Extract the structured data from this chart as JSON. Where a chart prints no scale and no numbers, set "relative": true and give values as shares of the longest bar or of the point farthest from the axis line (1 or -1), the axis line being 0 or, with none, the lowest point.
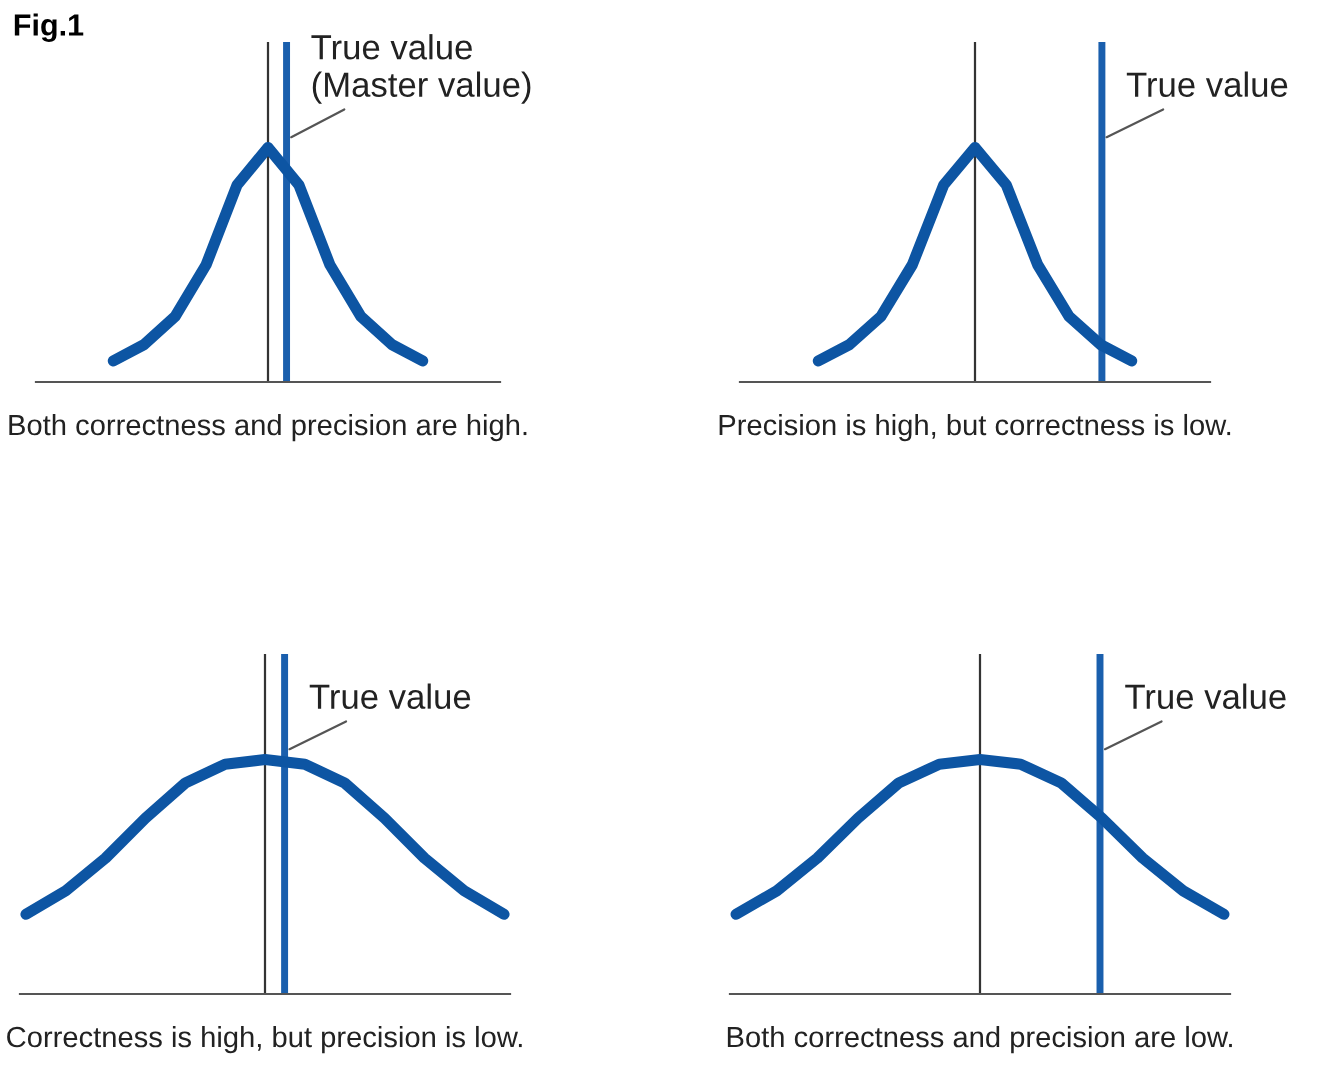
{
  "chart_data": [
    {
      "type": "line",
      "title": "Fig.1",
      "xlabel": "Both correctness and precision are high.",
      "relative": true,
      "categories": [
        null,
        null,
        null,
        null,
        null,
        null,
        null,
        null,
        null,
        null,
        null
      ],
      "series": [
        {
          "color": "#0d55a3",
          "values": [
            0.09,
            0.16,
            0.28,
            0.5,
            0.84,
            1.0,
            0.84,
            0.5,
            0.28,
            0.16,
            0.09
          ]
        }
      ],
      "annotations": [
        "True value\n(Master value)"
      ]
    },
    {
      "type": "line",
      "xlabel": "Precision is high, but correctness is low.",
      "relative": true,
      "categories": [
        null,
        null,
        null,
        null,
        null,
        null,
        null,
        null,
        null,
        null,
        null
      ],
      "series": [
        {
          "color": "#0d55a3",
          "values": [
            0.09,
            0.16,
            0.28,
            0.5,
            0.84,
            1.0,
            0.84,
            0.5,
            0.28,
            0.16,
            0.09
          ]
        }
      ],
      "annotations": [
        "True value"
      ]
    },
    {
      "type": "line",
      "xlabel": "Correctness is high, but precision is low.",
      "relative": true,
      "categories": [
        null,
        null,
        null,
        null,
        null,
        null,
        null,
        null,
        null,
        null,
        null,
        null,
        null
      ],
      "series": [
        {
          "color": "#0d55a3",
          "values": [
            0.34,
            0.44,
            0.58,
            0.75,
            0.9,
            0.98,
            1.0,
            0.98,
            0.9,
            0.75,
            0.58,
            0.44,
            0.34
          ]
        }
      ],
      "annotations": [
        "True value"
      ]
    },
    {
      "type": "line",
      "xlabel": "Both correctness and precision are low.",
      "relative": true,
      "categories": [
        null,
        null,
        null,
        null,
        null,
        null,
        null,
        null,
        null,
        null,
        null,
        null,
        null
      ],
      "series": [
        {
          "color": "#0d55a3",
          "values": [
            0.34,
            0.44,
            0.58,
            0.75,
            0.9,
            0.98,
            1.0,
            0.98,
            0.9,
            0.75,
            0.58,
            0.44,
            0.34
          ]
        }
      ],
      "annotations": [
        "True value"
      ]
    }
  ]
}
